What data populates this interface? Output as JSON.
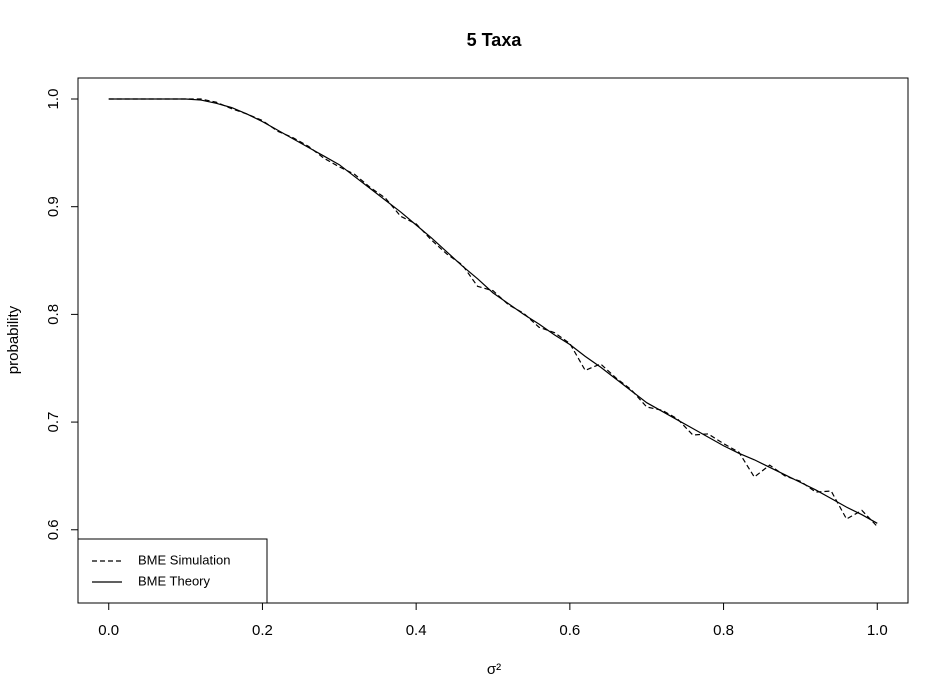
{
  "chart_data": {
    "type": "line",
    "title": "5 Taxa",
    "xlabel": "σ²",
    "ylabel": "probability",
    "x": [
      0,
      0.02,
      0.04,
      0.06,
      0.08,
      0.1,
      0.12,
      0.14,
      0.16,
      0.18,
      0.2,
      0.22,
      0.24,
      0.26,
      0.28,
      0.3,
      0.32,
      0.34,
      0.36,
      0.38,
      0.4,
      0.42,
      0.44,
      0.46,
      0.48,
      0.5,
      0.52,
      0.54,
      0.56,
      0.58,
      0.6,
      0.62,
      0.64,
      0.66,
      0.68,
      0.7,
      0.72,
      0.74,
      0.76,
      0.78,
      0.8,
      0.82,
      0.84,
      0.86,
      0.88,
      0.9,
      0.92,
      0.94,
      0.96,
      0.98,
      1
    ],
    "series": [
      {
        "name": "BME Simulation",
        "color": "#000000",
        "linestyle": "dashed",
        "values": [
          1,
          1,
          1,
          1,
          1,
          1,
          1,
          0.997,
          0.991,
          0.986,
          0.98,
          0.97,
          0.964,
          0.956,
          0.945,
          0.937,
          0.93,
          0.918,
          0.908,
          0.891,
          0.884,
          0.869,
          0.856,
          0.846,
          0.826,
          0.822,
          0.809,
          0.801,
          0.788,
          0.783,
          0.773,
          0.748,
          0.754,
          0.741,
          0.73,
          0.714,
          0.711,
          0.703,
          0.688,
          0.689,
          0.68,
          0.672,
          0.649,
          0.66,
          0.65,
          0.645,
          0.635,
          0.636,
          0.61,
          0.618,
          0.603
        ]
      },
      {
        "name": "BME Theory",
        "color": "#000000",
        "linestyle": "solid",
        "values": [
          1,
          1,
          1,
          1,
          1,
          1,
          0.999,
          0.996,
          0.992,
          0.986,
          0.979,
          0.971,
          0.963,
          0.955,
          0.947,
          0.939,
          0.928,
          0.917,
          0.906,
          0.895,
          0.883,
          0.871,
          0.858,
          0.845,
          0.833,
          0.82,
          0.81,
          0.8,
          0.791,
          0.781,
          0.772,
          0.761,
          0.751,
          0.74,
          0.729,
          0.718,
          0.71,
          0.702,
          0.694,
          0.686,
          0.678,
          0.671,
          0.665,
          0.658,
          0.651,
          0.644,
          0.637,
          0.629,
          0.621,
          0.614,
          0.606
        ]
      }
    ],
    "xlim": [
      -0.04,
      1.04
    ],
    "xticks": [
      {
        "value": 0,
        "label": "0.0"
      },
      0.2,
      0.4,
      0.6,
      0.8,
      {
        "value": 1,
        "label": "1.0"
      }
    ],
    "ylim": [
      0.532,
      1.0195
    ],
    "yticks": [
      0.6,
      0.7,
      0.8,
      0.9,
      {
        "value": 1,
        "label": "1.0"
      }
    ],
    "grid": false,
    "legend": "bottom-left"
  }
}
